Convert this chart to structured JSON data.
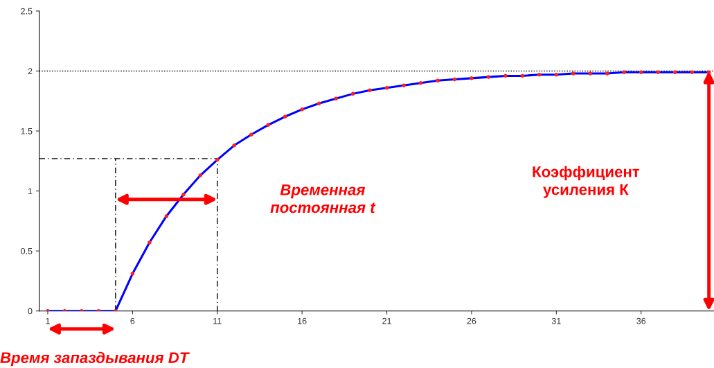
{
  "chart_data": {
    "type": "line",
    "x": [
      1,
      2,
      3,
      4,
      5,
      6,
      7,
      8,
      9,
      10,
      11,
      12,
      13,
      14,
      15,
      16,
      17,
      18,
      19,
      20,
      21,
      22,
      23,
      24,
      25,
      26,
      27,
      28,
      29,
      30,
      31,
      32,
      33,
      34,
      35,
      36,
      37,
      38,
      39,
      40
    ],
    "series": [
      {
        "color": "#0000ff",
        "line_style": "solid",
        "marker": "none",
        "values": [
          0,
          0,
          0,
          0,
          0,
          0.31,
          0.57,
          0.79,
          0.97,
          1.13,
          1.26,
          1.38,
          1.47,
          1.55,
          1.62,
          1.68,
          1.73,
          1.77,
          1.81,
          1.84,
          1.86,
          1.88,
          1.9,
          1.92,
          1.93,
          1.94,
          1.95,
          1.96,
          1.96,
          1.97,
          1.97,
          1.98,
          1.98,
          1.98,
          1.99,
          1.99,
          1.99,
          1.99,
          1.99,
          1.99
        ]
      },
      {
        "type": "scatter",
        "color": "#ff2020",
        "marker": "circle",
        "values": [
          0,
          0,
          0,
          0,
          0,
          0.31,
          0.57,
          0.79,
          0.97,
          1.13,
          1.26,
          1.38,
          1.47,
          1.55,
          1.62,
          1.68,
          1.73,
          1.77,
          1.81,
          1.84,
          1.86,
          1.88,
          1.9,
          1.92,
          1.93,
          1.94,
          1.95,
          1.96,
          1.96,
          1.97,
          1.97,
          1.98,
          1.98,
          1.98,
          1.99,
          1.99,
          1.99,
          1.99,
          1.99,
          1.99
        ]
      },
      {
        "color": "#000000",
        "line_style": "dashed",
        "marker": "none",
        "x": [
          0.5,
          11,
          11
        ],
        "values": [
          1.27,
          1.27,
          0
        ]
      },
      {
        "color": "#000000",
        "line_style": "dashed",
        "marker": "none",
        "x": [
          5,
          5
        ],
        "values": [
          0,
          1.27
        ]
      }
    ],
    "xlim": [
      0.5,
      40.3
    ],
    "xticks": [
      1,
      6,
      11,
      16,
      21,
      26,
      31,
      36
    ],
    "ylim": [
      0,
      2.5
    ],
    "yticks": [
      0,
      0.5,
      1,
      1.5,
      2,
      2.5
    ],
    "ref_lines": [
      {
        "axis": "y",
        "value": 2,
        "color": "#000000",
        "line_style": "dotted"
      }
    ],
    "grid": false,
    "legend": false,
    "annotations": [
      "Временная\nпостоянная t",
      "Коэффициент\nусиления К",
      "Время запаздывания DT"
    ]
  }
}
